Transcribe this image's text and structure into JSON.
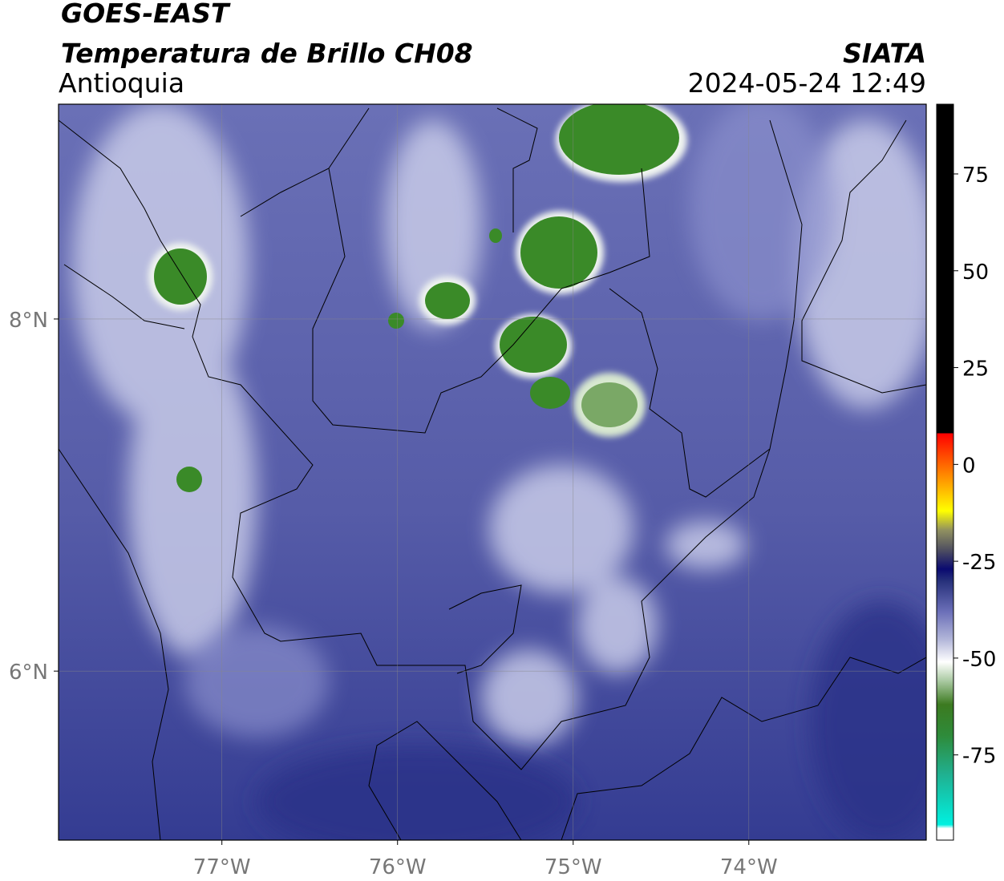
{
  "header": {
    "title": "GOES-EAST",
    "subtitle": "Temperatura de Brillo CH08",
    "region": "Antioquia",
    "source": "SIATA",
    "datetime": "2024-05-24 12:49"
  },
  "map": {
    "lonlim": [
      -77.93,
      -72.99
    ],
    "latlim": [
      5.04,
      9.22
    ],
    "lon_ticks": [
      {
        "value": -77,
        "label": "77°W"
      },
      {
        "value": -76,
        "label": "76°W"
      },
      {
        "value": -75,
        "label": "75°W"
      },
      {
        "value": -74,
        "label": "74°W"
      }
    ],
    "lat_ticks": [
      {
        "value": 8,
        "label": "8°N"
      },
      {
        "value": 6,
        "label": "6°N"
      }
    ],
    "grid": true
  },
  "colorbar": {
    "lim": [
      -97,
      93
    ],
    "ticks": [
      75,
      50,
      25,
      0,
      -25,
      -50,
      -75
    ],
    "stops": [
      {
        "value": -97,
        "color": "#ffffff"
      },
      {
        "value": -94,
        "color": "#ffffff"
      },
      {
        "value": -93,
        "color": "#00f0e0"
      },
      {
        "value": -80,
        "color": "#20b090"
      },
      {
        "value": -70,
        "color": "#2e8b3a"
      },
      {
        "value": -62,
        "color": "#3c7a20"
      },
      {
        "value": -56,
        "color": "#a8c8a0"
      },
      {
        "value": -51,
        "color": "#ffffff"
      },
      {
        "value": -45,
        "color": "#b0b4d8"
      },
      {
        "value": -38,
        "color": "#6b6fb8"
      },
      {
        "value": -30,
        "color": "#26307a"
      },
      {
        "value": -27,
        "color": "#0a0a70"
      },
      {
        "value": -22,
        "color": "#505060"
      },
      {
        "value": -17,
        "color": "#909060"
      },
      {
        "value": -12,
        "color": "#ffff00"
      },
      {
        "value": -5,
        "color": "#ffa500"
      },
      {
        "value": 3,
        "color": "#ff4000"
      },
      {
        "value": 8,
        "color": "#ff0000"
      },
      {
        "value": 8.01,
        "color": "#000000"
      },
      {
        "value": 93,
        "color": "#000000"
      }
    ]
  }
}
